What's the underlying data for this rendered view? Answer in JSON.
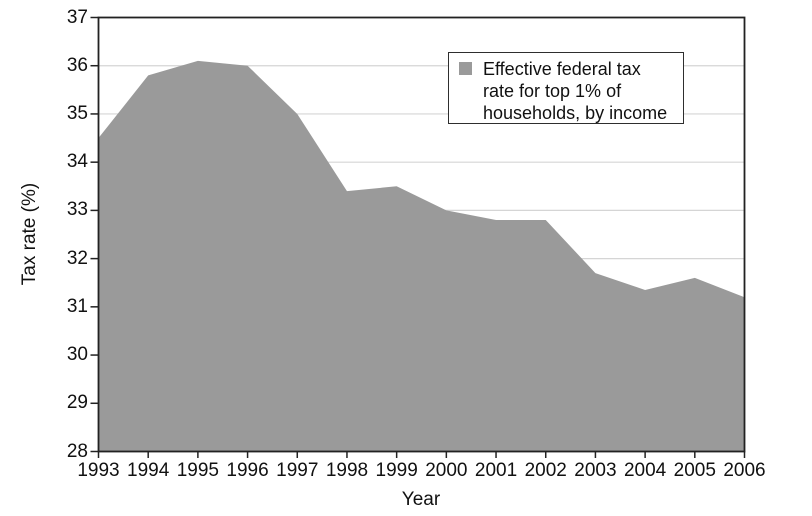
{
  "chart_data": {
    "type": "area",
    "title": "",
    "x": [
      "1993",
      "1994",
      "1995",
      "1996",
      "1997",
      "1998",
      "1999",
      "2000",
      "2001",
      "2002",
      "2003",
      "2004",
      "2005",
      "2006"
    ],
    "series": [
      {
        "name": "Effective federal tax rate for top 1% of households, by income",
        "values": [
          34.5,
          35.8,
          36.1,
          36.0,
          35.0,
          33.4,
          33.5,
          33.0,
          32.8,
          32.8,
          31.7,
          31.35,
          31.6,
          31.2
        ]
      }
    ],
    "xlabel": "Year",
    "ylabel": "Tax rate (%)",
    "ylim": [
      28,
      37
    ],
    "yticks": [
      28,
      29,
      30,
      31,
      32,
      33,
      34,
      35,
      36,
      37
    ],
    "grid": "horizontal-light",
    "legend_position": "top-right-inside"
  },
  "legend": {
    "swatch": "gray-square",
    "lines": [
      "Effective federal tax",
      "rate for top 1% of",
      "households, by income"
    ]
  },
  "colors": {
    "area_fill": "#9a9a9a",
    "gridline": "#d5d5d5",
    "axis_frame": "#222222",
    "tick": "#222222",
    "text": "#111111",
    "legend_border": "#2e2e2e",
    "background": "#ffffff"
  }
}
